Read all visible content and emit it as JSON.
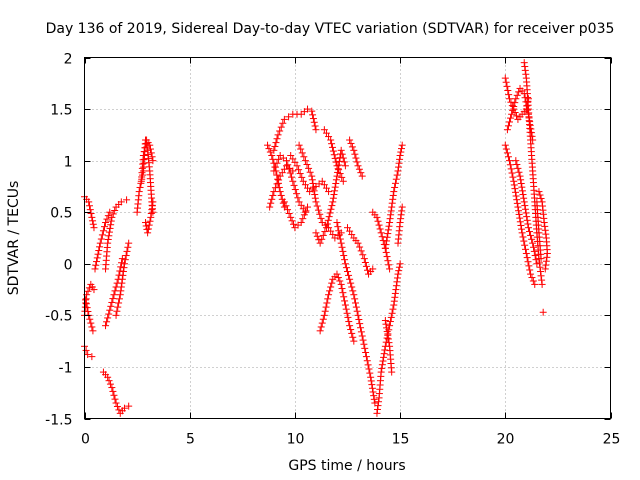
{
  "chart_data": {
    "type": "scatter",
    "title": "Day 136 of 2019, Sidereal Day-to-day VTEC variation (SDTVAR) for receiver p035",
    "xlabel": "GPS time / hours",
    "ylabel": "SDTVAR / TECUs",
    "xlim": [
      0,
      25
    ],
    "ylim": [
      -1.5,
      2
    ],
    "xticks": [
      0,
      5,
      10,
      15,
      20,
      25
    ],
    "yticks": [
      -1.5,
      -1,
      -0.5,
      0,
      0.5,
      1,
      1.5,
      2
    ],
    "xtick_labels": [
      "0",
      "5",
      "10",
      "15",
      "20",
      "25"
    ],
    "ytick_labels": [
      "-1.5",
      "-1",
      "-0.5",
      "0",
      "0.5",
      "1",
      "1.5",
      "2"
    ],
    "grid": true,
    "marker": "+",
    "color": "#ff0000",
    "series": [
      {
        "name": "SDTVAR",
        "note": "arcs approximated from the plotted '+' tracks",
        "segments": [
          [
            [
              0.0,
              0.65
            ],
            [
              0.2,
              0.6
            ],
            [
              0.35,
              0.45
            ],
            [
              0.45,
              0.35
            ]
          ],
          [
            [
              0.0,
              -0.5
            ],
            [
              0.1,
              -0.3
            ],
            [
              0.3,
              -0.2
            ],
            [
              0.45,
              -0.25
            ]
          ],
          [
            [
              0.0,
              -0.8
            ],
            [
              0.15,
              -0.88
            ],
            [
              0.35,
              -0.9
            ]
          ],
          [
            [
              0.05,
              -0.35
            ],
            [
              0.2,
              -0.5
            ],
            [
              0.4,
              -0.65
            ]
          ],
          [
            [
              0.5,
              -0.05
            ],
            [
              0.75,
              0.2
            ],
            [
              1.0,
              0.4
            ],
            [
              1.2,
              0.5
            ]
          ],
          [
            [
              1.0,
              -0.05
            ],
            [
              1.1,
              0.2
            ],
            [
              1.3,
              0.45
            ],
            [
              1.5,
              0.55
            ],
            [
              1.75,
              0.6
            ],
            [
              2.0,
              0.62
            ]
          ],
          [
            [
              1.0,
              -0.6
            ],
            [
              1.2,
              -0.45
            ],
            [
              1.4,
              -0.3
            ],
            [
              1.6,
              -0.15
            ],
            [
              1.8,
              0.05
            ]
          ],
          [
            [
              0.9,
              -1.05
            ],
            [
              1.1,
              -1.1
            ],
            [
              1.3,
              -1.2
            ],
            [
              1.5,
              -1.35
            ],
            [
              1.7,
              -1.45
            ],
            [
              1.9,
              -1.4
            ],
            [
              2.1,
              -1.38
            ]
          ],
          [
            [
              1.5,
              -0.5
            ],
            [
              1.7,
              -0.3
            ],
            [
              1.9,
              0.0
            ],
            [
              2.1,
              0.2
            ]
          ],
          [
            [
              2.5,
              0.5
            ],
            [
              2.6,
              0.7
            ],
            [
              2.8,
              0.9
            ],
            [
              2.9,
              1.2
            ],
            [
              3.0,
              1.1
            ],
            [
              3.1,
              0.9
            ],
            [
              3.2,
              0.6
            ],
            [
              3.25,
              0.5
            ]
          ],
          [
            [
              2.7,
              0.8
            ],
            [
              2.8,
              1.05
            ],
            [
              2.95,
              1.2
            ],
            [
              3.1,
              1.15
            ],
            [
              3.25,
              1.0
            ]
          ],
          [
            [
              2.9,
              0.4
            ],
            [
              3.0,
              0.3
            ],
            [
              3.15,
              0.45
            ],
            [
              3.25,
              0.6
            ]
          ],
          [
            [
              8.7,
              1.15
            ],
            [
              8.9,
              1.05
            ],
            [
              9.1,
              0.9
            ],
            [
              9.3,
              0.7
            ],
            [
              9.5,
              0.55
            ]
          ],
          [
            [
              8.8,
              0.55
            ],
            [
              9.0,
              0.7
            ],
            [
              9.3,
              0.85
            ],
            [
              9.6,
              0.95
            ],
            [
              9.9,
              0.9
            ]
          ],
          [
            [
              9.0,
              1.1
            ],
            [
              9.2,
              1.25
            ],
            [
              9.5,
              1.4
            ],
            [
              9.9,
              1.45
            ],
            [
              10.3,
              1.45
            ],
            [
              10.6,
              1.5
            ],
            [
              10.8,
              1.48
            ],
            [
              11.0,
              1.3
            ]
          ],
          [
            [
              9.0,
              0.9
            ],
            [
              9.3,
              1.05
            ],
            [
              9.6,
              1.0
            ],
            [
              9.9,
              0.8
            ],
            [
              10.2,
              0.6
            ],
            [
              10.5,
              0.5
            ]
          ],
          [
            [
              9.5,
              0.6
            ],
            [
              9.8,
              0.45
            ],
            [
              10.0,
              0.35
            ],
            [
              10.3,
              0.4
            ],
            [
              10.6,
              0.55
            ]
          ],
          [
            [
              9.8,
              1.05
            ],
            [
              10.1,
              0.95
            ],
            [
              10.4,
              0.8
            ],
            [
              10.7,
              0.7
            ],
            [
              11.0,
              0.75
            ],
            [
              11.3,
              0.8
            ],
            [
              11.6,
              0.7
            ]
          ],
          [
            [
              10.2,
              1.15
            ],
            [
              10.5,
              1.0
            ],
            [
              10.8,
              0.85
            ],
            [
              11.0,
              0.6
            ],
            [
              11.3,
              0.4
            ],
            [
              11.6,
              0.35
            ],
            [
              11.9,
              0.25
            ],
            [
              12.2,
              0.3
            ]
          ],
          [
            [
              11.0,
              0.3
            ],
            [
              11.2,
              0.2
            ],
            [
              11.5,
              0.35
            ],
            [
              11.8,
              0.6
            ],
            [
              12.0,
              0.85
            ],
            [
              12.2,
              1.1
            ],
            [
              12.4,
              0.95
            ]
          ],
          [
            [
              11.4,
              1.3
            ],
            [
              11.7,
              1.2
            ],
            [
              12.0,
              0.95
            ],
            [
              12.3,
              0.8
            ]
          ],
          [
            [
              12.6,
              1.2
            ],
            [
              12.8,
              1.1
            ],
            [
              13.0,
              0.95
            ],
            [
              13.2,
              0.85
            ]
          ],
          [
            [
              11.2,
              -0.65
            ],
            [
              11.4,
              -0.5
            ],
            [
              11.6,
              -0.3
            ],
            [
              11.8,
              -0.15
            ],
            [
              12.0,
              -0.1
            ],
            [
              12.2,
              -0.2
            ],
            [
              12.4,
              -0.4
            ],
            [
              12.6,
              -0.6
            ],
            [
              12.8,
              -0.75
            ]
          ],
          [
            [
              12.0,
              0.4
            ],
            [
              12.2,
              0.2
            ],
            [
              12.4,
              0.0
            ],
            [
              12.6,
              -0.15
            ],
            [
              12.8,
              -0.3
            ],
            [
              13.0,
              -0.5
            ],
            [
              13.2,
              -0.7
            ],
            [
              13.4,
              -0.9
            ],
            [
              13.6,
              -1.1
            ],
            [
              13.8,
              -1.35
            ]
          ],
          [
            [
              12.5,
              0.35
            ],
            [
              12.8,
              0.25
            ],
            [
              13.0,
              0.2
            ],
            [
              13.3,
              0.05
            ],
            [
              13.5,
              -0.1
            ],
            [
              13.7,
              -0.05
            ]
          ],
          [
            [
              13.9,
              -1.45
            ],
            [
              14.0,
              -1.3
            ],
            [
              14.1,
              -1.05
            ],
            [
              14.3,
              -0.8
            ],
            [
              14.5,
              -0.6
            ],
            [
              14.7,
              -0.4
            ],
            [
              14.9,
              -0.1
            ],
            [
              15.0,
              0.0
            ]
          ],
          [
            [
              14.3,
              -0.55
            ],
            [
              14.5,
              -0.8
            ],
            [
              14.6,
              -1.05
            ]
          ],
          [
            [
              14.3,
              0.15
            ],
            [
              14.5,
              0.4
            ],
            [
              14.7,
              0.7
            ],
            [
              14.9,
              0.9
            ],
            [
              15.0,
              1.05
            ],
            [
              15.1,
              1.15
            ]
          ],
          [
            [
              13.7,
              0.5
            ],
            [
              13.9,
              0.45
            ],
            [
              14.1,
              0.3
            ],
            [
              14.3,
              0.15
            ],
            [
              14.5,
              -0.05
            ]
          ],
          [
            [
              14.9,
              0.2
            ],
            [
              15.0,
              0.4
            ],
            [
              15.1,
              0.55
            ]
          ],
          [
            [
              20.0,
              1.8
            ],
            [
              20.2,
              1.6
            ],
            [
              20.4,
              1.5
            ],
            [
              20.6,
              1.4
            ],
            [
              20.8,
              1.45
            ],
            [
              21.0,
              1.5
            ],
            [
              21.1,
              1.6
            ]
          ],
          [
            [
              20.0,
              1.15
            ],
            [
              20.2,
              1.0
            ],
            [
              20.4,
              0.8
            ],
            [
              20.6,
              0.55
            ],
            [
              20.8,
              0.3
            ],
            [
              21.0,
              0.1
            ],
            [
              21.2,
              -0.1
            ],
            [
              21.4,
              -0.2
            ]
          ],
          [
            [
              20.1,
              1.3
            ],
            [
              20.3,
              1.45
            ],
            [
              20.5,
              1.6
            ],
            [
              20.7,
              1.7
            ],
            [
              20.9,
              1.65
            ],
            [
              21.1,
              1.45
            ],
            [
              21.3,
              1.2
            ]
          ],
          [
            [
              20.9,
              1.95
            ],
            [
              21.0,
              1.8
            ],
            [
              21.1,
              1.5
            ],
            [
              21.2,
              1.2
            ],
            [
              21.3,
              0.9
            ],
            [
              21.4,
              0.6
            ],
            [
              21.5,
              0.3
            ],
            [
              21.6,
              0.05
            ],
            [
              21.75,
              -0.2
            ]
          ],
          [
            [
              20.5,
              1.0
            ],
            [
              20.7,
              0.85
            ],
            [
              20.9,
              0.6
            ],
            [
              21.1,
              0.35
            ],
            [
              21.3,
              0.2
            ],
            [
              21.5,
              0.0
            ]
          ],
          [
            [
              21.6,
              0.7
            ],
            [
              21.75,
              0.6
            ],
            [
              21.85,
              0.4
            ],
            [
              21.95,
              0.25
            ],
            [
              22.0,
              0.1
            ],
            [
              21.9,
              -0.05
            ]
          ],
          [
            [
              21.5,
              0.6
            ],
            [
              21.6,
              0.3
            ],
            [
              21.7,
              0.05
            ]
          ]
        ],
        "points": [
          [
            21.8,
            -0.47
          ]
        ]
      }
    ]
  }
}
